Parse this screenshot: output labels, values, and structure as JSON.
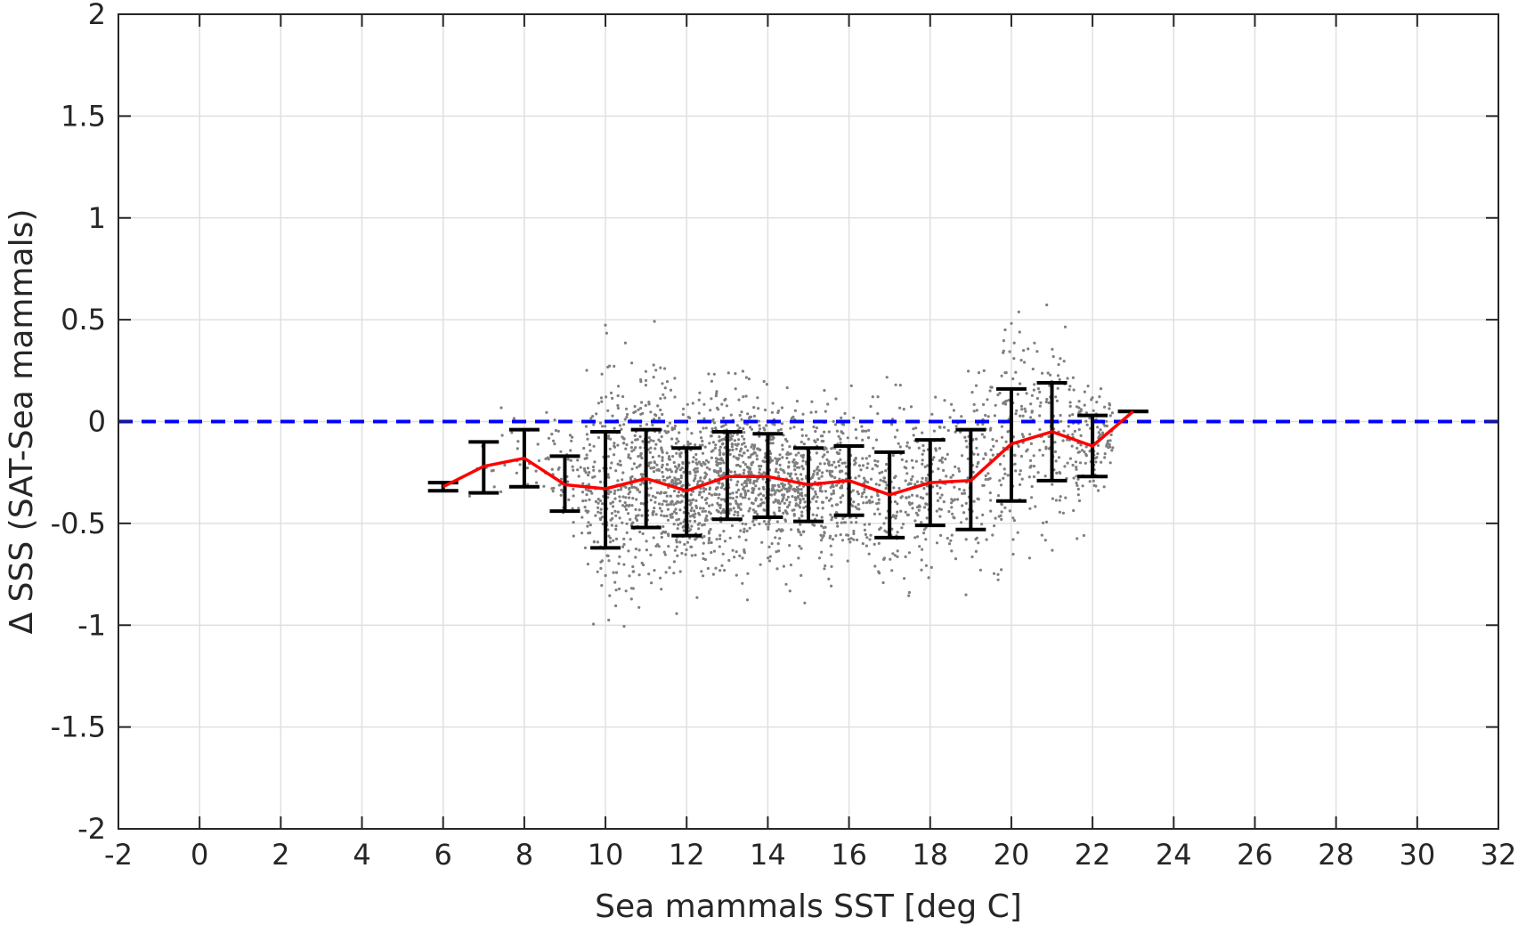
{
  "chart_data": {
    "type": "scatter",
    "title": "",
    "xlabel": "Sea mammals SST [deg C]",
    "ylabel": "Δ SSS (SAT-Sea mammals)",
    "xlim": [
      -2,
      32
    ],
    "ylim": [
      -2,
      2
    ],
    "x_ticks": [
      -2,
      0,
      2,
      4,
      6,
      8,
      10,
      12,
      14,
      16,
      18,
      20,
      22,
      24,
      26,
      28,
      30,
      32
    ],
    "y_ticks": [
      -2,
      -1.5,
      -1,
      -0.5,
      0,
      0.5,
      1,
      1.5,
      2
    ],
    "grid": true,
    "reference_line": {
      "y": 0,
      "color": "#0000ff",
      "style": "dashed"
    },
    "scatter_color": "#7f7f7f",
    "scatter_point_count": 2600,
    "binned_mean": {
      "color": "#ff0000",
      "x": [
        6,
        7,
        8,
        9,
        10,
        11,
        12,
        13,
        14,
        15,
        16,
        17,
        18,
        19,
        20,
        21,
        22,
        23
      ],
      "y": [
        -0.32,
        -0.22,
        -0.18,
        -0.31,
        -0.33,
        -0.28,
        -0.34,
        -0.27,
        -0.27,
        -0.31,
        -0.29,
        -0.36,
        -0.3,
        -0.29,
        -0.11,
        -0.05,
        -0.12,
        0.05
      ]
    },
    "error_bars": {
      "color": "#000000",
      "x": [
        6,
        7,
        8,
        9,
        10,
        11,
        12,
        13,
        14,
        15,
        16,
        17,
        18,
        19,
        20,
        21,
        22,
        23
      ],
      "lower": [
        -0.34,
        -0.35,
        -0.32,
        -0.44,
        -0.62,
        -0.52,
        -0.56,
        -0.48,
        -0.47,
        -0.49,
        -0.46,
        -0.57,
        -0.51,
        -0.53,
        -0.39,
        -0.29,
        -0.27,
        0.05
      ],
      "upper": [
        -0.3,
        -0.1,
        -0.04,
        -0.17,
        -0.05,
        -0.04,
        -0.13,
        -0.05,
        -0.06,
        -0.13,
        -0.12,
        -0.15,
        -0.09,
        -0.04,
        0.16,
        0.19,
        0.03,
        0.05
      ]
    }
  }
}
